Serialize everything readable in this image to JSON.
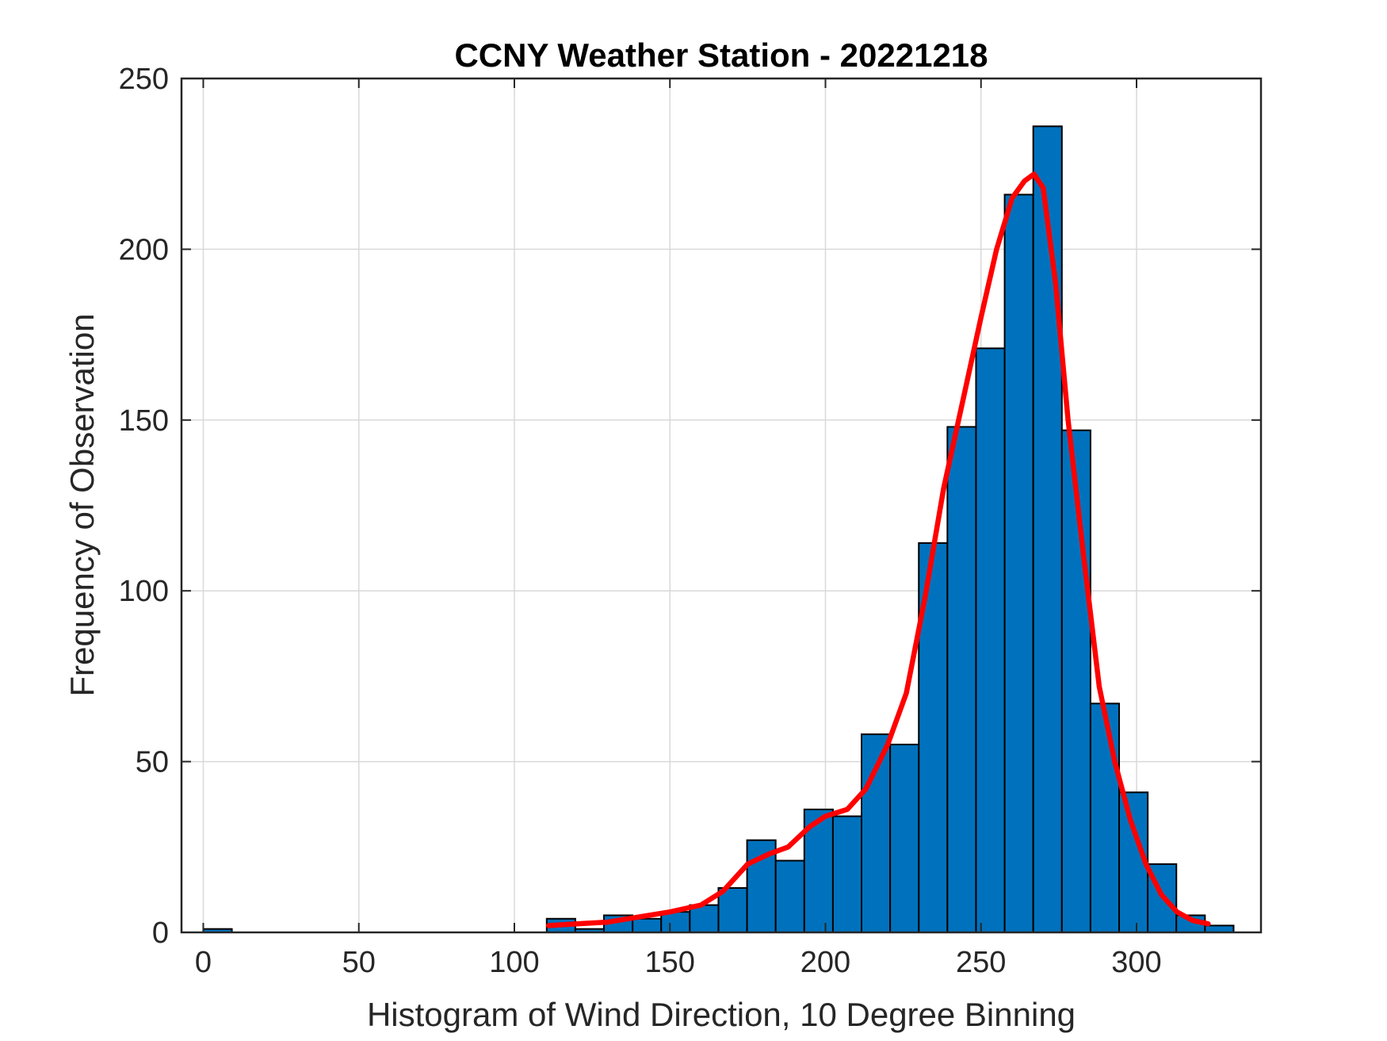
{
  "chart_data": {
    "type": "bar",
    "title": "CCNY Weather Station - 20221218",
    "xlabel": "Histogram of Wind Direction, 10 Degree Binning",
    "ylabel": "Frequency of Observation",
    "xlim": [
      -7,
      340
    ],
    "ylim": [
      0,
      250
    ],
    "xticks": [
      0,
      50,
      100,
      150,
      200,
      250,
      300
    ],
    "yticks": [
      0,
      50,
      100,
      150,
      200,
      250
    ],
    "grid": true,
    "bin_width": 9.2,
    "bins": [
      {
        "start": 0,
        "value": 1
      },
      {
        "start": 110.4,
        "value": 4
      },
      {
        "start": 119.6,
        "value": 1
      },
      {
        "start": 128.8,
        "value": 5
      },
      {
        "start": 138.0,
        "value": 4
      },
      {
        "start": 147.2,
        "value": 6
      },
      {
        "start": 156.4,
        "value": 8
      },
      {
        "start": 165.6,
        "value": 13
      },
      {
        "start": 174.8,
        "value": 27
      },
      {
        "start": 184.0,
        "value": 21
      },
      {
        "start": 193.2,
        "value": 36
      },
      {
        "start": 202.4,
        "value": 34
      },
      {
        "start": 211.6,
        "value": 58
      },
      {
        "start": 220.8,
        "value": 55
      },
      {
        "start": 230.0,
        "value": 114
      },
      {
        "start": 239.2,
        "value": 148
      },
      {
        "start": 248.4,
        "value": 171
      },
      {
        "start": 257.6,
        "value": 216
      },
      {
        "start": 266.8,
        "value": 236
      },
      {
        "start": 276.0,
        "value": 147
      },
      {
        "start": 285.2,
        "value": 67
      },
      {
        "start": 294.4,
        "value": 41
      },
      {
        "start": 303.6,
        "value": 20
      },
      {
        "start": 312.8,
        "value": 5
      },
      {
        "start": 322.0,
        "value": 2
      }
    ],
    "fit_curve": {
      "name": "density fit",
      "x": [
        111,
        120,
        130,
        140,
        150,
        160,
        167,
        175,
        182,
        188,
        195,
        200,
        207,
        213,
        220,
        226,
        232,
        238,
        244,
        250,
        255,
        260,
        264,
        267,
        270,
        274,
        278,
        283,
        288,
        293,
        298,
        303,
        308,
        313,
        318,
        323
      ],
      "y": [
        2,
        2.5,
        3,
        4.5,
        6,
        8,
        12,
        20,
        23,
        25,
        31,
        34,
        36,
        42,
        55,
        70,
        98,
        130,
        155,
        180,
        200,
        215,
        220,
        222,
        218,
        190,
        150,
        110,
        72,
        50,
        33,
        20,
        11,
        6,
        3.5,
        2.5
      ]
    },
    "colors": {
      "bar_fill": "#0072BD",
      "bar_edge": "#000000",
      "fit_line": "#ff0000",
      "grid": "#d9d9d9",
      "axes": "#262626"
    }
  }
}
